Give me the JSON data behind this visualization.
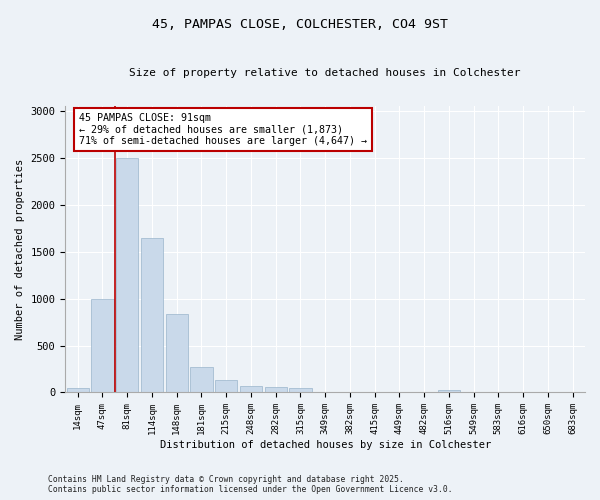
{
  "title1": "45, PAMPAS CLOSE, COLCHESTER, CO4 9ST",
  "title2": "Size of property relative to detached houses in Colchester",
  "xlabel": "Distribution of detached houses by size in Colchester",
  "ylabel": "Number of detached properties",
  "categories": [
    "14sqm",
    "47sqm",
    "81sqm",
    "114sqm",
    "148sqm",
    "181sqm",
    "215sqm",
    "248sqm",
    "282sqm",
    "315sqm",
    "349sqm",
    "382sqm",
    "415sqm",
    "449sqm",
    "482sqm",
    "516sqm",
    "549sqm",
    "583sqm",
    "616sqm",
    "650sqm",
    "683sqm"
  ],
  "values": [
    50,
    1000,
    2500,
    1650,
    840,
    275,
    130,
    65,
    60,
    45,
    8,
    0,
    8,
    0,
    0,
    25,
    0,
    0,
    0,
    0,
    0
  ],
  "bar_color": "#c9d9ea",
  "bar_edge_color": "#9ab5cc",
  "line_x_index": 1.5,
  "line_color": "#bb0000",
  "annotation_text": "45 PAMPAS CLOSE: 91sqm\n← 29% of detached houses are smaller (1,873)\n71% of semi-detached houses are larger (4,647) →",
  "annotation_box_color": "#ffffff",
  "annotation_box_edge": "#bb0000",
  "ylim": [
    0,
    3050
  ],
  "yticks": [
    0,
    500,
    1000,
    1500,
    2000,
    2500,
    3000
  ],
  "footnote1": "Contains HM Land Registry data © Crown copyright and database right 2025.",
  "footnote2": "Contains public sector information licensed under the Open Government Licence v3.0.",
  "background_color": "#edf2f7"
}
